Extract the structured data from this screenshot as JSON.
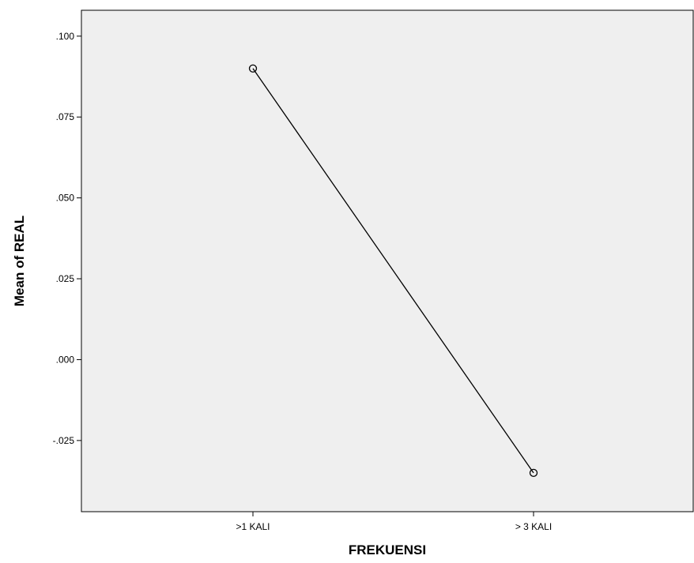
{
  "chart_data": {
    "type": "line",
    "title": "",
    "xlabel": "FREKUENSI",
    "ylabel": "Mean of REAL",
    "categories": [
      ">1 KALI",
      "> 3 KALI"
    ],
    "series": [
      {
        "values": [
          0.09,
          -0.035
        ]
      }
    ],
    "ylim": [
      -0.047,
      0.108
    ],
    "yticks": [
      0.1,
      0.075,
      0.05,
      0.025,
      0.0,
      -0.025
    ],
    "ytick_labels": [
      ".100",
      ".075",
      ".050",
      ".025",
      ".000",
      "-.025"
    ],
    "marker": "open-circle",
    "grid": false,
    "legend": "none",
    "colors": {
      "plot_background": "#efefef",
      "line": "#000000",
      "axis": "#000000"
    }
  }
}
